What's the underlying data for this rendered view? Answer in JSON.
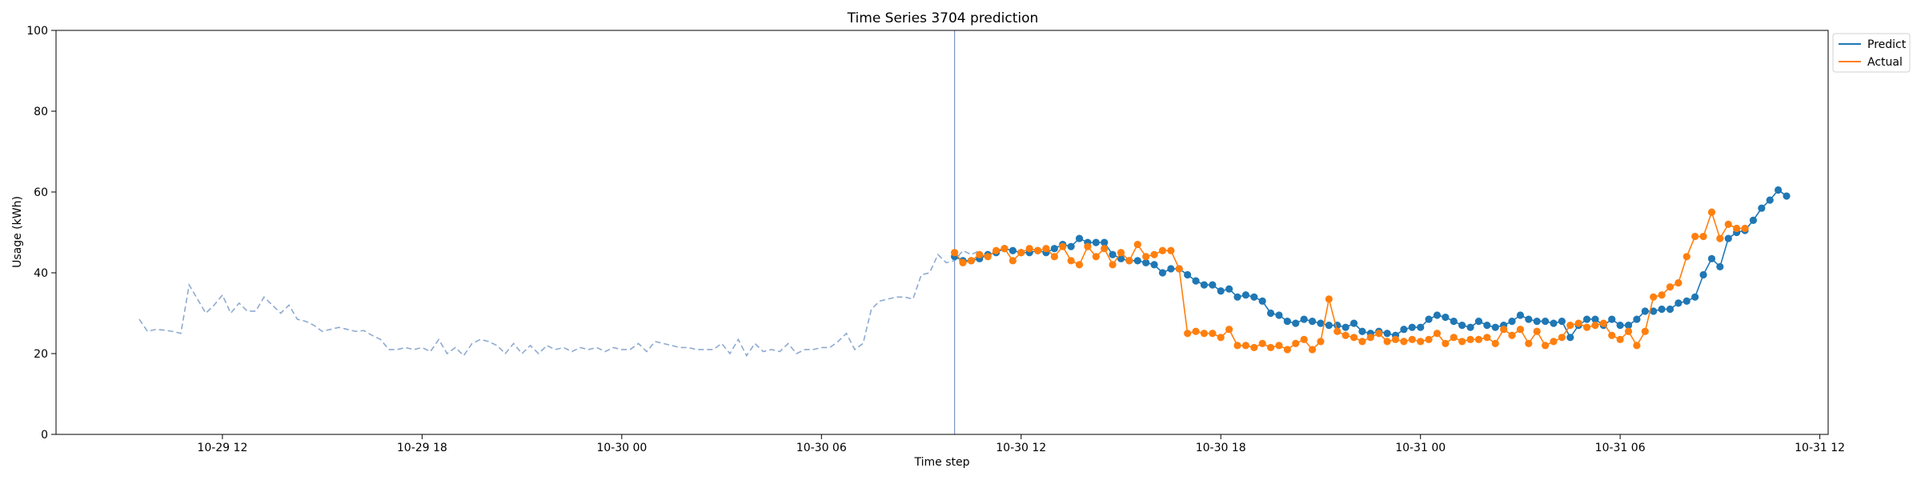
{
  "chart_data": {
    "type": "line",
    "title": "Time Series 3704 prediction",
    "xlabel": "Time step",
    "ylabel": "Usage (kWh)",
    "ylim": [
      0,
      100
    ],
    "yticks": [
      0,
      20,
      40,
      60,
      80,
      100
    ],
    "xlim": [
      "2023-10-29 07:00",
      "2023-10-31 12:15"
    ],
    "xticks": [
      {
        "t": "2023-10-29 12:00",
        "label": "10-29 12"
      },
      {
        "t": "2023-10-29 18:00",
        "label": "10-29 18"
      },
      {
        "t": "2023-10-30 00:00",
        "label": "10-30 00"
      },
      {
        "t": "2023-10-30 06:00",
        "label": "10-30 06"
      },
      {
        "t": "2023-10-30 12:00",
        "label": "10-30 12"
      },
      {
        "t": "2023-10-30 18:00",
        "label": "10-30 18"
      },
      {
        "t": "2023-10-31 00:00",
        "label": "10-31 00"
      },
      {
        "t": "2023-10-31 06:00",
        "label": "10-31 06"
      },
      {
        "t": "2023-10-31 12:00",
        "label": "10-31 12"
      }
    ],
    "forecast_start": "2023-10-30 10:00",
    "interval_minutes": 15,
    "history": {
      "start": "2023-10-29 09:30",
      "color": "#8eaad0",
      "values": [
        28.5,
        25.5,
        26,
        25.8,
        25.5,
        25,
        37,
        33.5,
        30,
        32,
        34.5,
        30,
        32.5,
        30.5,
        30.5,
        34,
        32,
        30,
        32,
        28.5,
        28,
        27,
        25.5,
        26,
        26.5,
        26,
        25.5,
        25.7,
        24.5,
        23.5,
        21,
        21,
        21.5,
        21,
        21.5,
        20.5,
        23.5,
        20,
        21.5,
        19.5,
        22.5,
        23.5,
        23,
        22,
        20,
        22.5,
        20,
        22,
        20,
        22,
        21,
        21.5,
        20.5,
        21.5,
        21,
        21.5,
        20.5,
        21.5,
        21,
        21,
        22.5,
        20.5,
        23,
        22.5,
        22,
        21.5,
        21.5,
        21,
        21,
        21,
        22.5,
        20,
        23.5,
        19.5,
        22.5,
        20.5,
        21,
        20.5,
        22.5,
        20,
        21,
        21,
        21.5,
        21.5,
        23,
        25,
        21,
        22.5,
        31,
        33,
        33.5,
        34,
        34,
        33.5,
        39.5,
        40,
        44.5,
        42.5,
        43,
        45.5,
        44.5,
        45.5
      ]
    },
    "series": [
      {
        "name": "Predict",
        "color": "#1f77b4",
        "start": "2023-10-30 10:00",
        "values": [
          44,
          43,
          43,
          43.5,
          44.5,
          45,
          46,
          45.5,
          45,
          45,
          45.5,
          45,
          46,
          47,
          46.5,
          48.5,
          47.5,
          47.5,
          47.5,
          44.5,
          43.5,
          43,
          43,
          42.5,
          42,
          40,
          41,
          41,
          39.5,
          38,
          37,
          37,
          35.5,
          36,
          34,
          34.5,
          34,
          33,
          30,
          29.5,
          28,
          27.5,
          28.5,
          28,
          27.5,
          27,
          27,
          26.5,
          27.5,
          25.5,
          25,
          25.5,
          25,
          24.5,
          26,
          26.5,
          26.5,
          28.5,
          29.5,
          29,
          28,
          27,
          26.5,
          28,
          27,
          26.5,
          27,
          28,
          29.5,
          28.5,
          28,
          28,
          27.5,
          28,
          24,
          27,
          28.5,
          28.5,
          27,
          28.5,
          27,
          27,
          28.5,
          30.5,
          30.5,
          31,
          31,
          32.5,
          33,
          34,
          39.5,
          43.5,
          41.5,
          48.5,
          50,
          50.5,
          53,
          56,
          58,
          60.5,
          59
        ]
      },
      {
        "name": "Actual",
        "color": "#ff7f0e",
        "start": "2023-10-30 10:00",
        "values": [
          45,
          42.5,
          43,
          44.5,
          44,
          45.5,
          46,
          43,
          45,
          46,
          45.5,
          46,
          44,
          46.5,
          43,
          42,
          46.5,
          44,
          46,
          42,
          45,
          43,
          47,
          44,
          44.5,
          45.5,
          45.5,
          41,
          25,
          25.5,
          25,
          25,
          24,
          26,
          22,
          22,
          21.5,
          22.5,
          21.5,
          22,
          21,
          22.5,
          23.5,
          21,
          23,
          33.5,
          25.5,
          24.5,
          24,
          23,
          24,
          25,
          23,
          23.5,
          23,
          23.5,
          23,
          23.5,
          25,
          22.5,
          24,
          23,
          23.5,
          23.5,
          24,
          22.5,
          26,
          24.5,
          26,
          22.5,
          25.5,
          22,
          23,
          24,
          27,
          27.5,
          26.5,
          27,
          27.5,
          24.5,
          23.5,
          25.5,
          22,
          25.5,
          34,
          34.5,
          36.5,
          37.5,
          44,
          49,
          49,
          55,
          48.5,
          52,
          51,
          51
        ]
      }
    ],
    "legend": {
      "placement": "outside-top-right",
      "entries": [
        "Predict",
        "Actual"
      ]
    },
    "grid": false
  }
}
